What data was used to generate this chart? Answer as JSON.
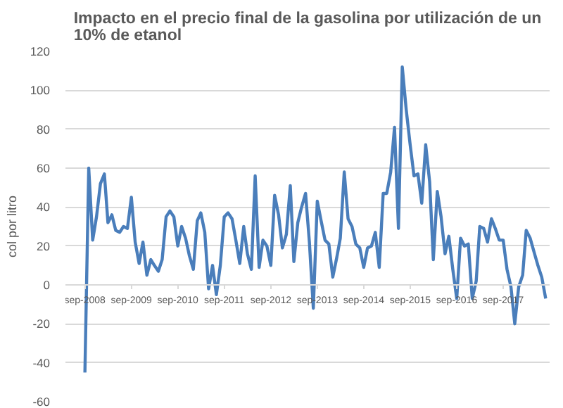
{
  "chart_data": {
    "type": "line",
    "title": "Impacto en el precio final de la gasolina por utilización de un\n10% de etanol",
    "ylabel": "col por litro",
    "x": [
      "2008-09",
      "2008-10",
      "2008-11",
      "2008-12",
      "2009-01",
      "2009-02",
      "2009-03",
      "2009-04",
      "2009-05",
      "2009-06",
      "2009-07",
      "2009-08",
      "2009-09",
      "2009-10",
      "2009-11",
      "2009-12",
      "2010-01",
      "2010-02",
      "2010-03",
      "2010-04",
      "2010-05",
      "2010-06",
      "2010-07",
      "2010-08",
      "2010-09",
      "2010-10",
      "2010-11",
      "2010-12",
      "2011-01",
      "2011-02",
      "2011-03",
      "2011-04",
      "2011-05",
      "2011-06",
      "2011-07",
      "2011-08",
      "2011-09",
      "2011-10",
      "2011-11",
      "2011-12",
      "2012-01",
      "2012-02",
      "2012-03",
      "2012-04",
      "2012-05",
      "2012-06",
      "2012-07",
      "2012-08",
      "2012-09",
      "2012-10",
      "2012-11",
      "2012-12",
      "2013-01",
      "2013-02",
      "2013-03",
      "2013-04",
      "2013-05",
      "2013-06",
      "2013-07",
      "2013-08",
      "2013-09",
      "2013-10",
      "2013-11",
      "2013-12",
      "2014-01",
      "2014-02",
      "2014-03",
      "2014-04",
      "2014-05",
      "2014-06",
      "2014-07",
      "2014-08",
      "2014-09",
      "2014-10",
      "2014-11",
      "2014-12",
      "2015-01",
      "2015-02",
      "2015-03",
      "2015-04",
      "2015-05",
      "2015-06",
      "2015-07",
      "2015-08",
      "2015-09",
      "2015-10",
      "2015-11",
      "2015-12",
      "2016-01",
      "2016-02",
      "2016-03",
      "2016-04",
      "2016-05",
      "2016-06",
      "2016-07",
      "2016-08",
      "2016-09",
      "2016-10",
      "2016-11",
      "2016-12",
      "2017-01",
      "2017-02",
      "2017-03",
      "2017-04",
      "2017-05",
      "2017-06",
      "2017-07",
      "2017-08",
      "2017-09",
      "2017-10",
      "2017-11",
      "2017-12",
      "2018-01",
      "2018-02",
      "2018-03",
      "2018-04",
      "2018-05",
      "2018-06",
      "2018-07",
      "2018-08"
    ],
    "series": [
      {
        "color": "#4a7ebb",
        "values": [
          -45,
          60,
          23,
          35,
          52,
          57,
          32,
          36,
          28,
          27,
          30,
          29,
          45,
          22,
          11,
          22,
          5,
          13,
          10,
          7,
          13,
          35,
          38,
          35,
          20,
          30,
          24,
          15,
          8,
          33,
          37,
          27,
          -2,
          10,
          -5,
          10,
          35,
          37,
          34,
          23,
          11,
          30,
          16,
          8,
          56,
          9,
          23,
          20,
          10,
          46,
          36,
          19,
          26,
          51,
          12,
          32,
          40,
          47,
          22,
          -12,
          43,
          33,
          23,
          21,
          4,
          14,
          24,
          58,
          34,
          30,
          21,
          19,
          9,
          19,
          20,
          27,
          9,
          47,
          47,
          58,
          81,
          29,
          112,
          90,
          72,
          56,
          57,
          42,
          72,
          53,
          13,
          48,
          35,
          16,
          25,
          8,
          -7,
          24,
          20,
          21,
          -7,
          2,
          30,
          29,
          22,
          34,
          29,
          23,
          23,
          8,
          -1,
          -20,
          -1,
          5,
          28,
          24,
          17,
          10,
          4,
          -7
        ]
      }
    ],
    "xlim": [
      "2008-04",
      "2018-09"
    ],
    "xticks": [
      {
        "value": "2008-09",
        "label": "sep-2008"
      },
      {
        "value": "2009-09",
        "label": "sep-2009"
      },
      {
        "value": "2010-09",
        "label": "sep-2010"
      },
      {
        "value": "2011-09",
        "label": "sep-2011"
      },
      {
        "value": "2012-09",
        "label": "sep-2012"
      },
      {
        "value": "2013-09",
        "label": "sep-2013"
      },
      {
        "value": "2014-09",
        "label": "sep-2014"
      },
      {
        "value": "2015-09",
        "label": "sep-2015"
      },
      {
        "value": "2016-09",
        "label": "sep-2016"
      },
      {
        "value": "2017-09",
        "label": "sep-2017"
      }
    ],
    "ylim": [
      -60,
      120
    ],
    "yticks": [
      -60,
      -40,
      -20,
      0,
      20,
      40,
      60,
      80,
      100,
      120
    ],
    "grid": "y",
    "marker": "none",
    "line_style": "solid"
  }
}
